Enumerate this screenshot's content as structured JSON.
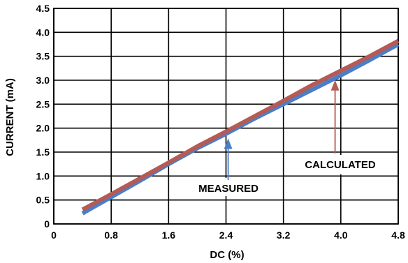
{
  "chart_data": {
    "type": "line",
    "xlabel": "DC (%)",
    "ylabel": "CURRENT (mA)",
    "xlim": [
      0,
      4.8
    ],
    "ylim": [
      0,
      4.5
    ],
    "x_ticks": [
      0,
      0.8,
      1.6,
      2.4,
      3.2,
      4.0,
      4.8
    ],
    "x_tick_labels": [
      "0",
      "0.8",
      "1.6",
      "2.4",
      "3.2",
      "4.0",
      "4.8"
    ],
    "y_ticks": [
      0,
      0.5,
      1.0,
      1.5,
      2.0,
      2.5,
      3.0,
      3.5,
      4.0,
      4.5
    ],
    "y_tick_labels": [
      "0",
      "0.5",
      "1.0",
      "1.5",
      "2.0",
      "2.5",
      "3.0",
      "3.5",
      "4.0",
      "4.5"
    ],
    "grid": true,
    "series": [
      {
        "name": "MEASURED",
        "color": "#4a7ec8",
        "x": [
          0.4,
          0.8,
          1.2,
          1.6,
          2.0,
          2.4,
          2.8,
          3.2,
          3.6,
          4.0,
          4.4,
          4.8
        ],
        "y": [
          0.22,
          0.56,
          0.9,
          1.25,
          1.58,
          1.88,
          2.2,
          2.5,
          2.8,
          3.1,
          3.42,
          3.75
        ]
      },
      {
        "name": "CALCULATED",
        "color": "#b55a55",
        "x": [
          0.4,
          0.8,
          1.2,
          1.6,
          2.0,
          2.4,
          2.8,
          3.2,
          3.6,
          4.0,
          4.4,
          4.8
        ],
        "y": [
          0.3,
          0.62,
          0.95,
          1.28,
          1.62,
          1.93,
          2.25,
          2.57,
          2.9,
          3.2,
          3.5,
          3.82
        ]
      }
    ],
    "annotations": [
      {
        "text": "MEASURED",
        "arrow_to": [
          2.43,
          1.9
        ],
        "arrow_color": "#4a7ec8"
      },
      {
        "text": "CALCULATED",
        "arrow_to": [
          3.92,
          3.12
        ],
        "arrow_color": "#b55a55"
      }
    ]
  }
}
